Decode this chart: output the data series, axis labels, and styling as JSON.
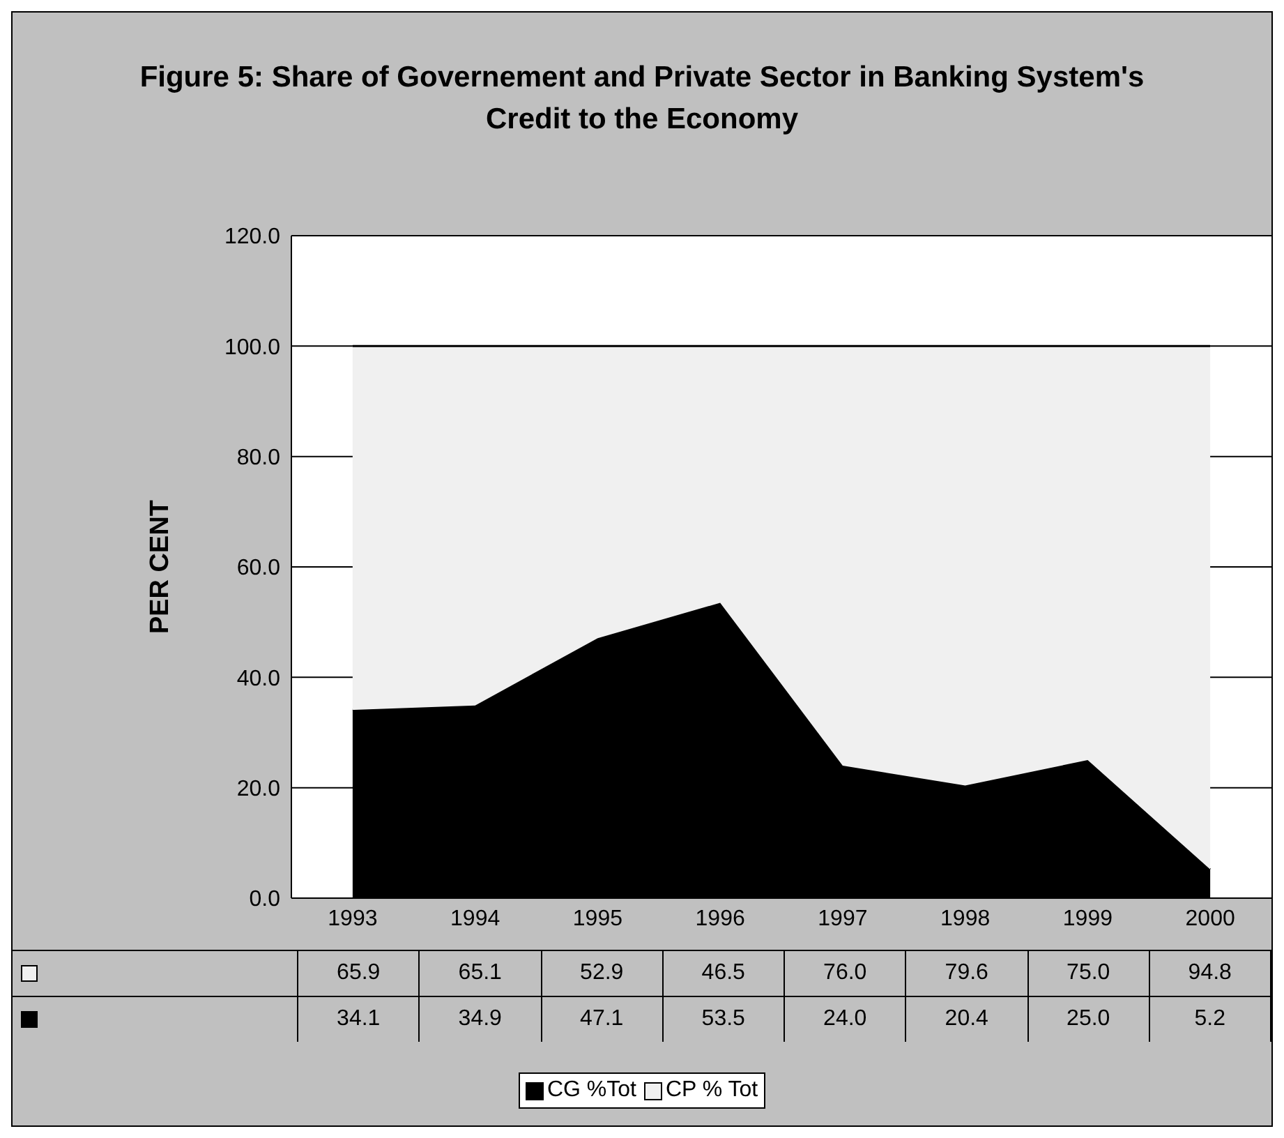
{
  "chart_data": {
    "type": "area",
    "stacked": true,
    "title": "Figure 5:  Share of Governement and Private Sector in Banking System's Credit to the Economy",
    "ylabel": "PER CENT",
    "categories": [
      "1993",
      "1994",
      "1995",
      "1996",
      "1997",
      "1998",
      "1999",
      "2000"
    ],
    "series": [
      {
        "name": "CG %Tot",
        "color": "#000000",
        "values": [
          34.1,
          34.9,
          47.1,
          53.5,
          24.0,
          20.4,
          25.0,
          5.2
        ],
        "value_labels": [
          "34.1",
          "34.9",
          "47.1",
          "53.5",
          "24.0",
          "20.4",
          "25.0",
          "5.2"
        ]
      },
      {
        "name": "CP % Tot",
        "color": "#f0f0f0",
        "values": [
          65.9,
          65.1,
          52.9,
          46.5,
          76.0,
          79.6,
          75.0,
          94.8
        ],
        "value_labels": [
          "65.9",
          "65.1",
          "52.9",
          "46.5",
          "76.0",
          "79.6",
          "75.0",
          "94.8"
        ]
      }
    ],
    "ylim": [
      0,
      120
    ],
    "yticks": [
      {
        "value": 0,
        "label": "0.0"
      },
      {
        "value": 20,
        "label": "20.0"
      },
      {
        "value": 40,
        "label": "40.0"
      },
      {
        "value": 60,
        "label": "60.0"
      },
      {
        "value": 80,
        "label": "80.0"
      },
      {
        "value": 100,
        "label": "100.0"
      },
      {
        "value": 120,
        "label": "120.0"
      }
    ],
    "grid": "y",
    "legend": "bottom"
  }
}
